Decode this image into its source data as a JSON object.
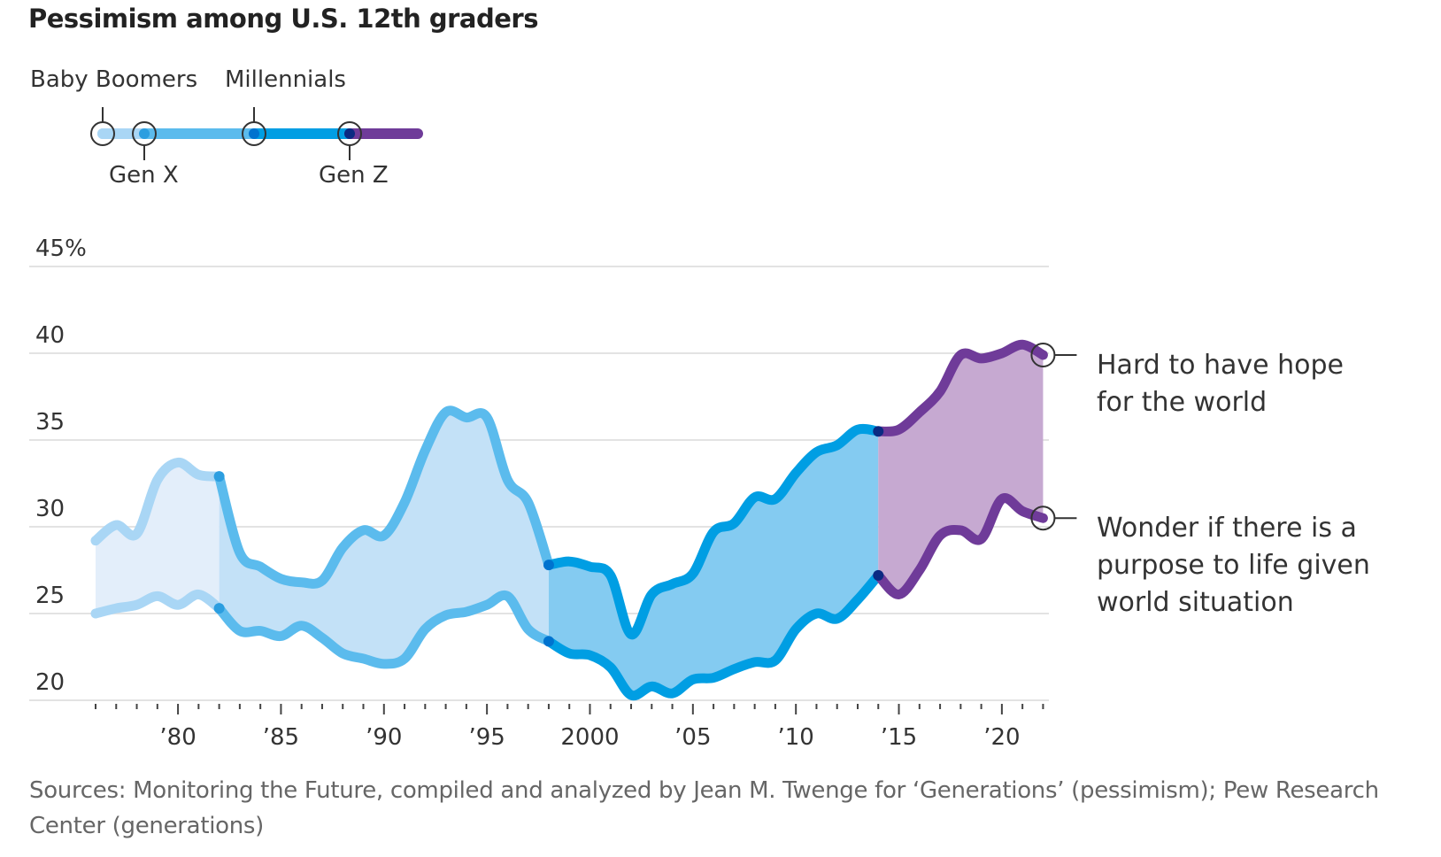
{
  "title": "Pessimism among U.S. 12th graders",
  "legend": {
    "items": [
      {
        "label": "Baby Boomers",
        "color": "#a9d6f5",
        "start_year": 1976
      },
      {
        "label": "Gen X",
        "color": "#5bbbed",
        "start_year": 1982
      },
      {
        "label": "Millennials",
        "color": "#009ee3",
        "start_year": 1998
      },
      {
        "label": "Gen Z",
        "color": "#6f3b99",
        "start_year": 2014
      }
    ],
    "marker_colors": [
      "#a9d6f5",
      "#2c9ee0",
      "#0073cf",
      "#0b2a82"
    ]
  },
  "annotations": {
    "hope": [
      "Hard to have hope",
      "for the world"
    ],
    "purpose": [
      "Wonder if there is a",
      "purpose to life given",
      "world situation"
    ]
  },
  "source": {
    "line1": "Sources: Monitoring the Future, compiled and analyzed by Jean M. Twenge for  ‘Generations’ (pessimism); Pew Research",
    "line2": "Center (generations)"
  },
  "chart_data": {
    "type": "area",
    "title": "Pessimism among U.S. 12th graders",
    "xlabel": "",
    "ylabel": "",
    "ylim": [
      20,
      45
    ],
    "xlim": [
      1976,
      2022
    ],
    "y_ticks": [
      20,
      25,
      30,
      35,
      40,
      45
    ],
    "y_tick_labels": [
      "20",
      "25",
      "30",
      "35",
      "40",
      "45%"
    ],
    "x_ticks": [
      1980,
      1985,
      1990,
      1995,
      2000,
      2005,
      2010,
      2015,
      2020
    ],
    "x_tick_labels": [
      "’80",
      "’85",
      "’90",
      "’95",
      "2000",
      "’05",
      "’10",
      "’15",
      "’20"
    ],
    "grid": true,
    "x": [
      1976,
      1977,
      1978,
      1979,
      1980,
      1981,
      1982,
      1983,
      1984,
      1985,
      1986,
      1987,
      1988,
      1989,
      1990,
      1991,
      1992,
      1993,
      1994,
      1995,
      1996,
      1997,
      1998,
      1999,
      2000,
      2001,
      2002,
      2003,
      2004,
      2005,
      2006,
      2007,
      2008,
      2009,
      2010,
      2011,
      2012,
      2013,
      2014,
      2015,
      2016,
      2017,
      2018,
      2019,
      2020,
      2021,
      2022
    ],
    "series": [
      {
        "name": "Hard to have hope for the world",
        "values": [
          29.2,
          30.1,
          29.6,
          32.7,
          33.7,
          33.0,
          32.9,
          28.5,
          27.7,
          27.0,
          26.8,
          26.9,
          28.8,
          29.8,
          29.5,
          31.4,
          34.4,
          36.6,
          36.3,
          36.3,
          32.7,
          31.4,
          27.8,
          28.0,
          27.7,
          27.2,
          23.8,
          26.1,
          26.7,
          27.3,
          29.7,
          30.2,
          31.7,
          31.6,
          33.1,
          34.3,
          34.7,
          35.6,
          35.5,
          35.6,
          36.6,
          37.8,
          39.9,
          39.7,
          40.0,
          40.5,
          39.9
        ]
      },
      {
        "name": "Wonder if there is a purpose to life given world situation",
        "values": [
          25.0,
          25.3,
          25.5,
          26.0,
          25.5,
          26.1,
          25.3,
          24.0,
          24.0,
          23.7,
          24.3,
          23.6,
          22.7,
          22.4,
          22.1,
          22.4,
          24.1,
          24.9,
          25.1,
          25.5,
          26.0,
          24.1,
          23.4,
          22.7,
          22.6,
          21.9,
          20.3,
          20.8,
          20.4,
          21.2,
          21.3,
          21.8,
          22.2,
          22.3,
          24.1,
          25.0,
          24.7,
          25.8,
          27.2,
          26.1,
          27.5,
          29.5,
          29.8,
          29.3,
          31.6,
          30.9,
          30.5
        ]
      }
    ],
    "segments": [
      {
        "generation": "Baby Boomers",
        "from": 1976,
        "to": 1982,
        "line_color": "#a9d6f5",
        "fill_color": "#e3eefa",
        "join_color": "#2c9ee0"
      },
      {
        "generation": "Gen X",
        "from": 1982,
        "to": 1998,
        "line_color": "#5bbbed",
        "fill_color": "#c3e1f7",
        "join_color": "#0073cf"
      },
      {
        "generation": "Millennials",
        "from": 1998,
        "to": 2014,
        "line_color": "#009ee3",
        "fill_color": "#84cbf1",
        "join_color": "#0b2a82"
      },
      {
        "generation": "Gen Z",
        "from": 2014,
        "to": 2022,
        "line_color": "#6f3b99",
        "fill_color": "#c6a9d1",
        "join_color": null
      }
    ],
    "legend_position": "top-left"
  }
}
